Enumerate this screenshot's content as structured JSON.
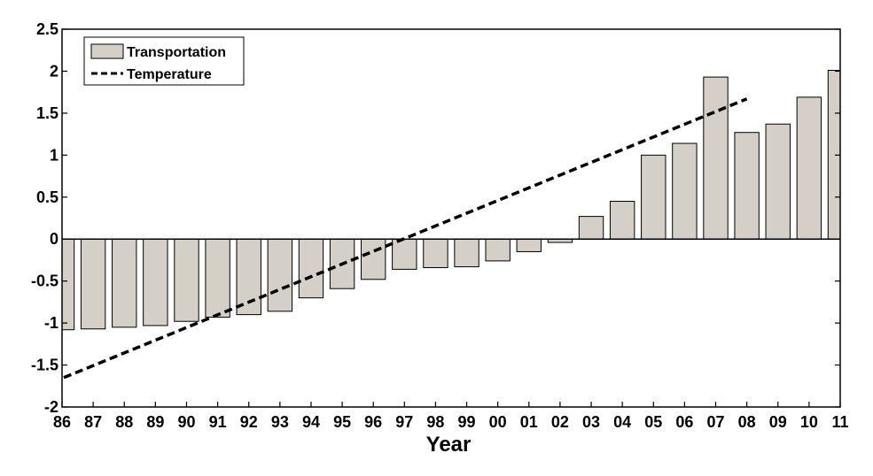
{
  "chart_data": {
    "type": "bar",
    "categories": [
      "86",
      "87",
      "88",
      "89",
      "90",
      "91",
      "92",
      "93",
      "94",
      "95",
      "96",
      "97",
      "98",
      "99",
      "00",
      "01",
      "02",
      "03",
      "04",
      "05",
      "06",
      "07",
      "08",
      "09",
      "10",
      "11"
    ],
    "series": [
      {
        "name": "Transportation",
        "type": "bar",
        "color": "#d4d0c8",
        "values": [
          -1.08,
          -1.07,
          -1.05,
          -1.03,
          -0.98,
          -0.93,
          -0.9,
          -0.86,
          -0.7,
          -0.59,
          -0.48,
          -0.36,
          -0.34,
          -0.33,
          -0.26,
          -0.15,
          -0.04,
          0.27,
          0.45,
          1.0,
          1.14,
          1.93,
          1.27,
          1.37,
          1.69,
          2.01
        ]
      },
      {
        "name": "Temperature",
        "type": "line",
        "style": "dashed",
        "color": "#000000",
        "x": [
          "86",
          "08"
        ],
        "values": [
          -1.65,
          1.67
        ]
      }
    ],
    "title": "",
    "xlabel": "Year",
    "ylabel": "",
    "ylim": [
      -2,
      2.5
    ],
    "yticks": [
      -2,
      -1.5,
      -1,
      -0.5,
      0,
      0.5,
      1,
      1.5,
      2,
      2.5
    ],
    "yticklabels": [
      "-2",
      "-1.5",
      "-1",
      "-0.5",
      "0",
      "0.5",
      "1",
      "1.5",
      "2",
      "2.5"
    ],
    "grid": false,
    "legend": "top-left"
  }
}
